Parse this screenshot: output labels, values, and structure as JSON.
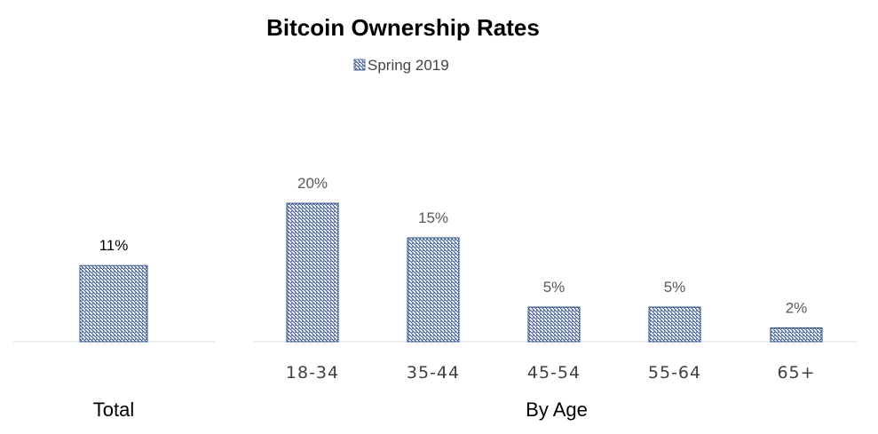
{
  "chart_data": {
    "type": "bar",
    "title": "Bitcoin Ownership Rates",
    "legend": {
      "position": "top",
      "entries": [
        "Spring 2019"
      ]
    },
    "series": [
      {
        "name": "Spring 2019"
      }
    ],
    "groups": [
      {
        "label": "Total",
        "categories": [
          ""
        ],
        "values": [
          11
        ],
        "value_labels": [
          "11%"
        ]
      },
      {
        "label": "By Age",
        "categories": [
          "18-34",
          "35-44",
          "45-54",
          "55-64",
          "65+"
        ],
        "values": [
          20,
          15,
          5,
          5,
          2
        ],
        "value_labels": [
          "20%",
          "15%",
          "5%",
          "5%",
          "2%"
        ]
      }
    ],
    "ylim": [
      0,
      20
    ],
    "grid": false,
    "colors": {
      "bar_stroke": "#2f4f8a",
      "bar_hatch": "#2f4f8a",
      "axis_line": "#d9d9d9",
      "data_label_total": "#000000",
      "data_label_age": "#595959"
    }
  }
}
